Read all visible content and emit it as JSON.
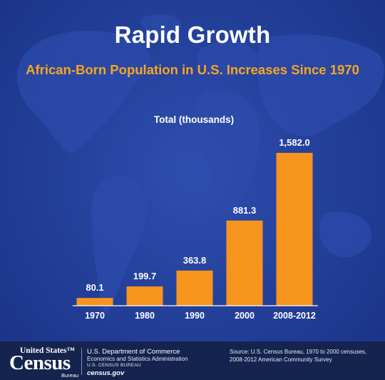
{
  "title": "Rapid Growth",
  "subtitle": "African-Born Population in U.S. Increases Since 1970",
  "colors": {
    "background": "#24419b",
    "bar": "#f7941d",
    "accent": "#f5a623",
    "text": "#ffffff",
    "footer": "#14244f"
  },
  "chart_data": {
    "type": "bar",
    "title": "Total (thousands)",
    "categories": [
      "1970",
      "1980",
      "1990",
      "2000",
      "2008-2012"
    ],
    "values": [
      80.1,
      199.7,
      363.8,
      881.3,
      1582.0
    ],
    "value_labels": [
      "80.1",
      "199.7",
      "363.8",
      "881.3",
      "1,582.0"
    ],
    "xlabel": "",
    "ylabel": "",
    "ylim": [
      0,
      1582.0
    ],
    "grid": false,
    "legend": "none"
  },
  "footer": {
    "logo_top": "United States™",
    "logo_main": "Census",
    "logo_bottom": "Bureau",
    "department": "U.S. Department of Commerce",
    "administration": "Economics and Statistics Administration",
    "bureau": "U.S. CENSUS BUREAU",
    "website": "census.gov",
    "source_line1": "Source: U.S. Census Bureau, 1970 to 2000 censuses,",
    "source_line2": "2008-2012 American Community Survey"
  }
}
